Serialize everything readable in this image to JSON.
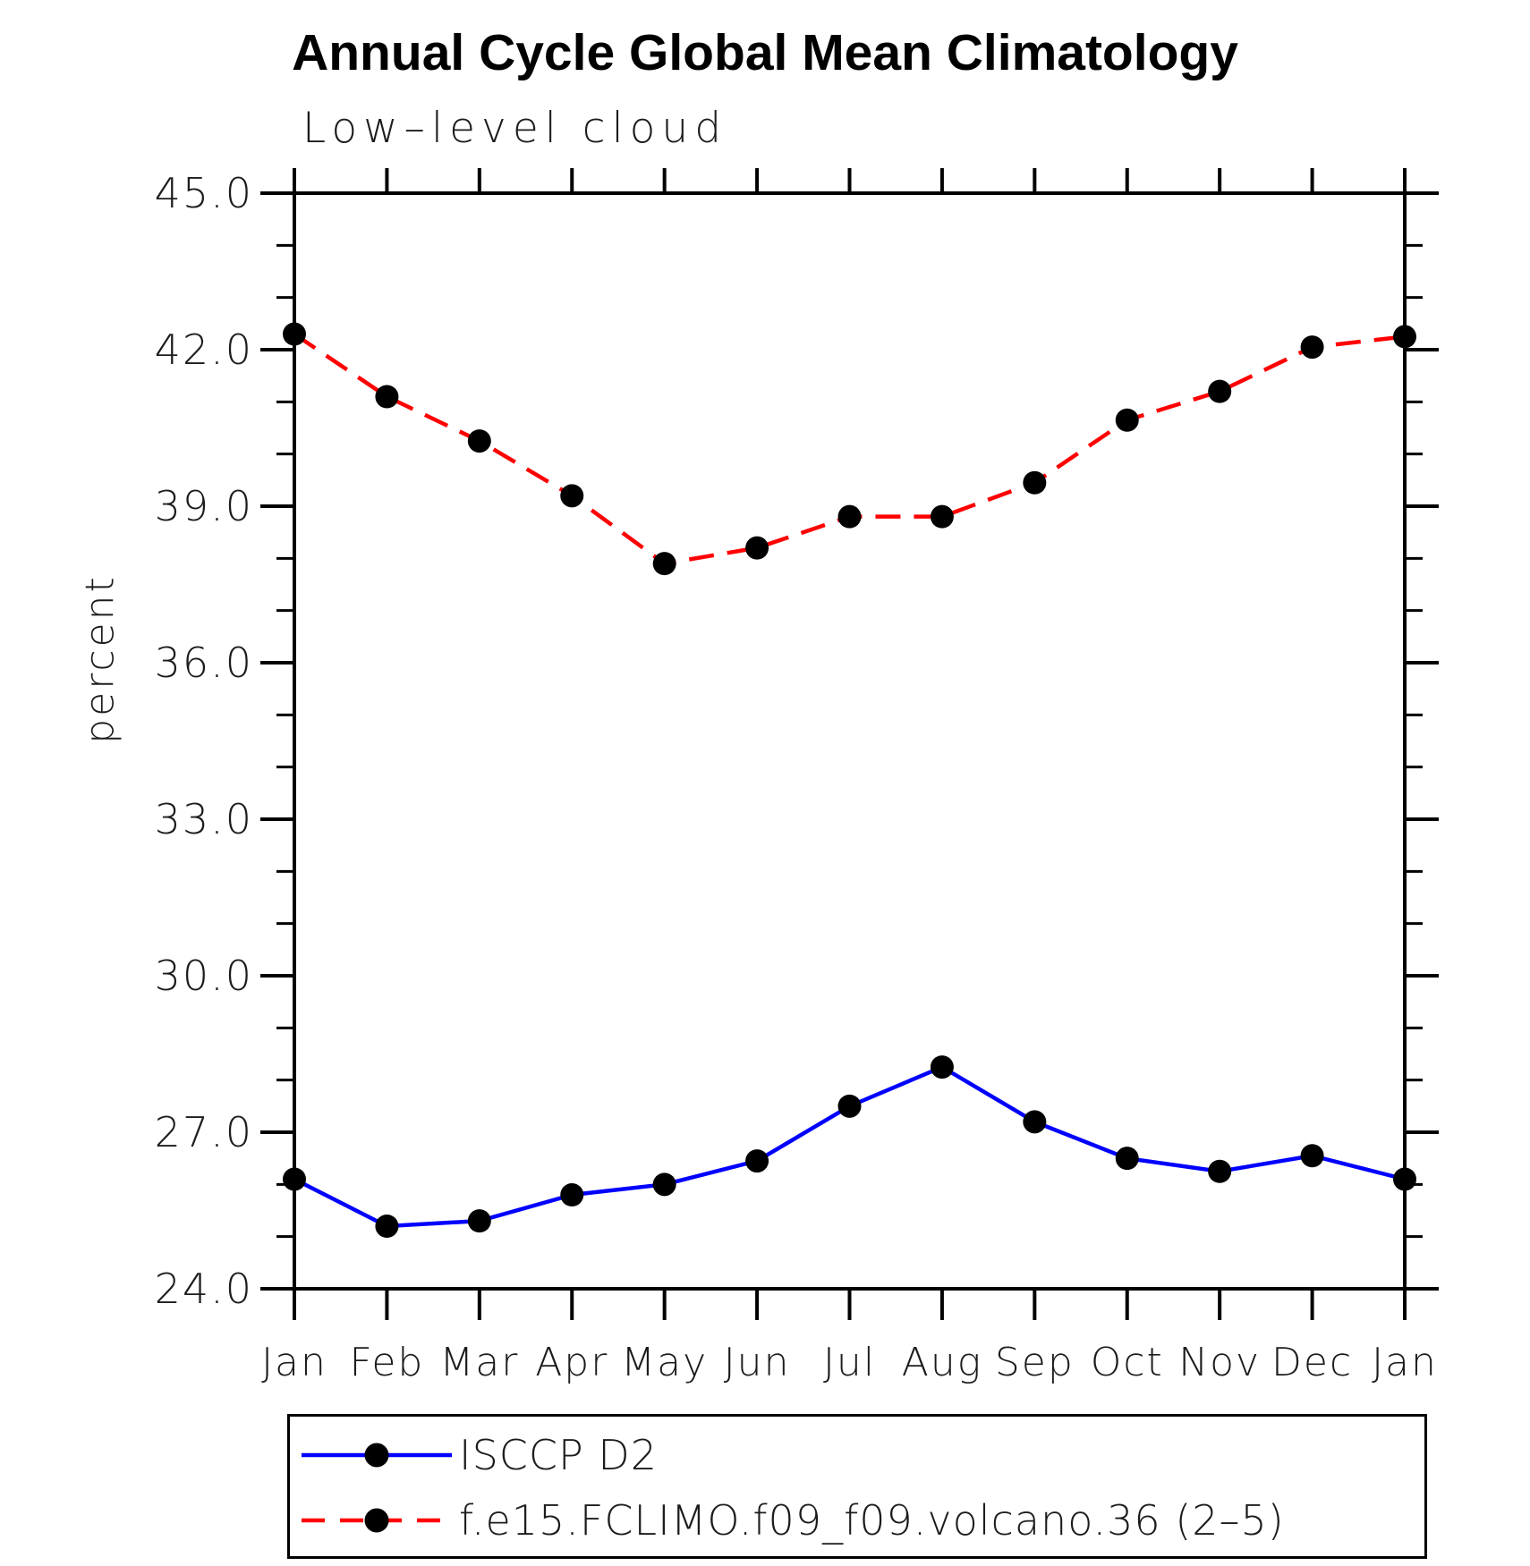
{
  "chart_data": {
    "type": "line",
    "title": "Annual Cycle Global Mean Climatology",
    "subtitle": "Low–level cloud",
    "ylabel": "percent",
    "categories": [
      "Jan",
      "Feb",
      "Mar",
      "Apr",
      "May",
      "Jun",
      "Jul",
      "Aug",
      "Sep",
      "Oct",
      "Nov",
      "Dec",
      "Jan"
    ],
    "ylim": [
      24.0,
      45.0
    ],
    "y_major_step": 3.0,
    "y_minor_step": 1.0,
    "y_tick_labels": [
      "24.0",
      "27.0",
      "30.0",
      "33.0",
      "36.0",
      "39.0",
      "42.0",
      "45.0"
    ],
    "grid": false,
    "legend_position": "bottom",
    "marker": "filled-circle",
    "marker_color": "#000000",
    "series": [
      {
        "name": "ISCCP D2",
        "color": "#0000ff",
        "style": "solid",
        "values": [
          26.1,
          25.2,
          25.3,
          25.8,
          26.0,
          26.45,
          27.5,
          28.25,
          27.2,
          26.5,
          26.25,
          26.55,
          26.1
        ]
      },
      {
        "name": "f.e15.FCLIMO.f09_f09.volcano.36 (2–5)",
        "color": "#ff0000",
        "style": "dashed",
        "values": [
          42.3,
          41.1,
          40.25,
          39.2,
          37.9,
          38.2,
          38.8,
          38.8,
          39.45,
          40.65,
          41.2,
          42.05,
          42.25
        ]
      }
    ]
  }
}
